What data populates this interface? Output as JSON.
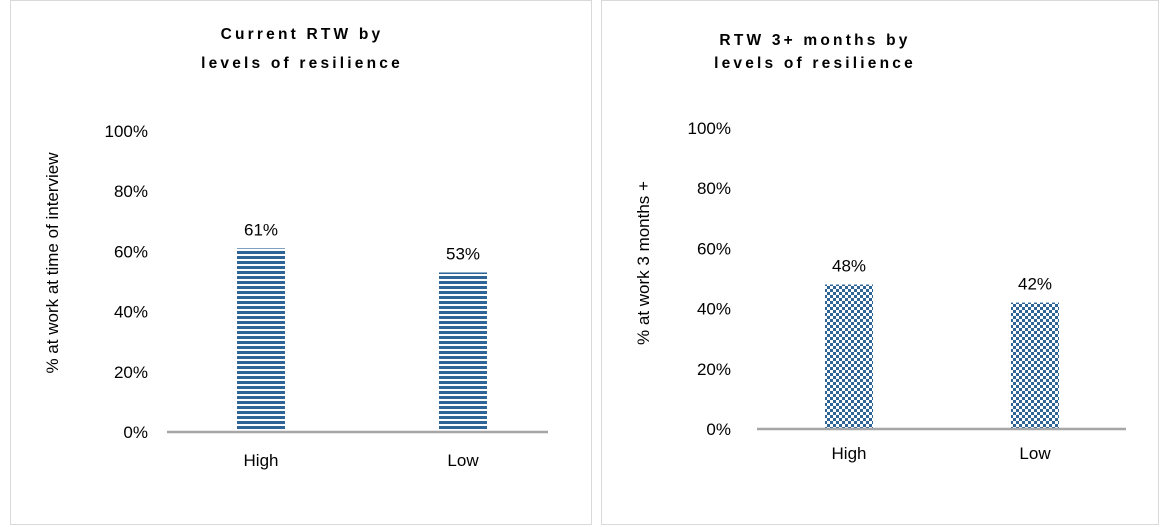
{
  "charts": [
    {
      "title_line1": "Current RTW by",
      "title_line2": "levels of resilience",
      "ylabel": "% at work at time of interview",
      "yticks": [
        "0%",
        "20%",
        "40%",
        "60%",
        "80%",
        "100%"
      ],
      "categories": [
        "High",
        "Low"
      ],
      "value_labels": [
        "61%",
        "53%"
      ],
      "pattern": "horizontal-stripes"
    },
    {
      "title_line1": "RTW 3+ months by",
      "title_line2": "levels of resilience",
      "ylabel": "% at work 3 months +",
      "yticks": [
        "0%",
        "20%",
        "40%",
        "60%",
        "80%",
        "100%"
      ],
      "categories": [
        "High",
        "Low"
      ],
      "value_labels": [
        "48%",
        "42%"
      ],
      "pattern": "checkerboard"
    }
  ],
  "colors": {
    "bar_dark": "#2e6496",
    "bar_light": "#ffffff",
    "axis": "#a6a6a6",
    "border": "#d9d9d9"
  },
  "chart_data": [
    {
      "type": "bar",
      "title": "Current RTW by levels of resilience",
      "xlabel": "",
      "ylabel": "% at work at time of interview",
      "categories": [
        "High",
        "Low"
      ],
      "values": [
        61,
        53
      ],
      "ylim": [
        0,
        100
      ],
      "grid": false,
      "legend": "none"
    },
    {
      "type": "bar",
      "title": "RTW 3+ months by levels of resilience",
      "xlabel": "",
      "ylabel": "% at work 3 months +",
      "categories": [
        "High",
        "Low"
      ],
      "values": [
        48,
        42
      ],
      "ylim": [
        0,
        100
      ],
      "grid": false,
      "legend": "none"
    }
  ]
}
